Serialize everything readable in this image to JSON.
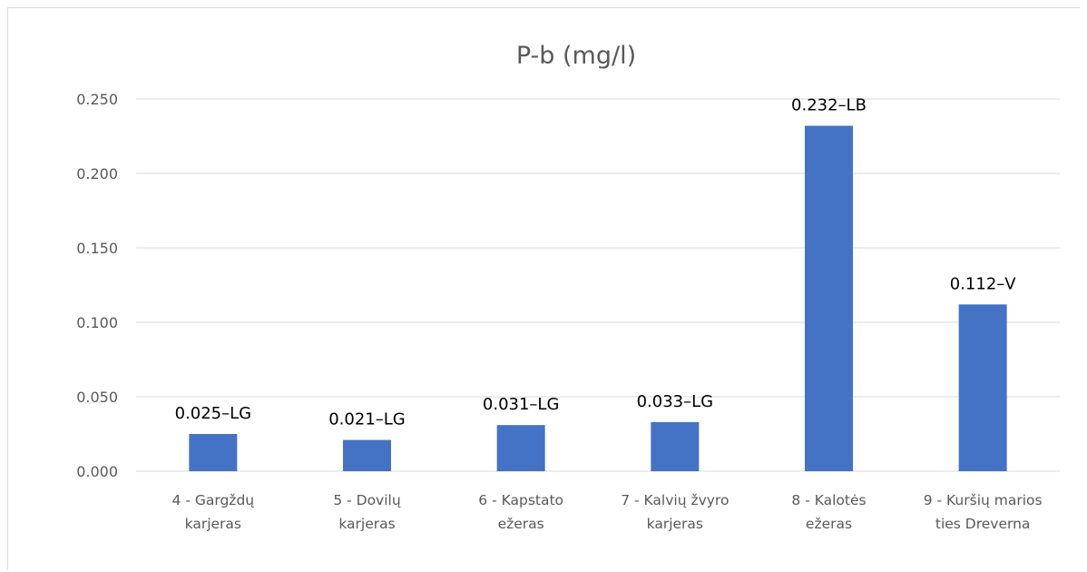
{
  "chart_data": {
    "type": "bar",
    "title": "P-b (mg/l)",
    "xlabel": "",
    "ylabel": "",
    "ylim": [
      0,
      0.25
    ],
    "yticks": [
      "0.000",
      "0.050",
      "0.100",
      "0.150",
      "0.200",
      "0.250"
    ],
    "grid": true,
    "legend": "none",
    "bar_color": "#4472c4",
    "categories": [
      [
        "4 - Gargždų",
        "karjeras"
      ],
      [
        "5 - Dovilų",
        "karjeras"
      ],
      [
        "6 - Kapstato",
        "ežeras"
      ],
      [
        "7 - Kalvių žvyro",
        "karjeras"
      ],
      [
        "8 - Kalotės",
        "ežeras"
      ],
      [
        "9 - Kuršių marios",
        "ties Dreverna"
      ]
    ],
    "values": [
      0.025,
      0.021,
      0.031,
      0.033,
      0.232,
      0.112
    ],
    "data_labels": [
      "0.025–LG",
      "0.021–LG",
      "0.031–LG",
      "0.033–LG",
      "0.232–LB",
      "0.112–V"
    ]
  }
}
